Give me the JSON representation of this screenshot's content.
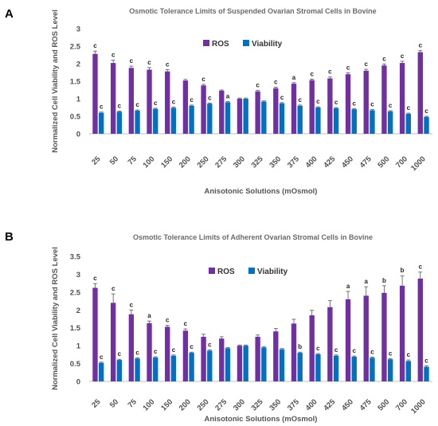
{
  "colors": {
    "ros": "#7030a0",
    "viability": "#0070c0",
    "axis": "#bfbfbf",
    "error": "#555555"
  },
  "chart_data": [
    {
      "panel": "A",
      "type": "bar",
      "title": "Osmotic Tolerance Limits of Suspended Ovarian Stromal Cells in Bovine",
      "xlabel": "Anisotonic Solutions (mOsmol)",
      "ylabel": "Normalized Cell Viability and ROS Level",
      "ylim": [
        0,
        3
      ],
      "yticks": [
        "0",
        "0.5",
        "1",
        "1.5",
        "2",
        "2.5",
        "3"
      ],
      "legend": "top-center",
      "categories": [
        "25",
        "50",
        "75",
        "100",
        "150",
        "200",
        "250",
        "275",
        "300",
        "325",
        "350",
        "375",
        "400",
        "425",
        "450",
        "475",
        "500",
        "700",
        "1000"
      ],
      "series": [
        {
          "name": "ROS",
          "values": [
            2.28,
            2.02,
            1.88,
            1.83,
            1.78,
            1.52,
            1.38,
            1.23,
            1.0,
            1.21,
            1.3,
            1.43,
            1.53,
            1.58,
            1.7,
            1.8,
            1.95,
            2.02,
            2.33
          ],
          "errors": [
            0.08,
            0.08,
            0.05,
            0.06,
            0.05,
            0.03,
            0.03,
            0.02,
            0.02,
            0.03,
            0.03,
            0.03,
            0.03,
            0.04,
            0.04,
            0.04,
            0.04,
            0.05,
            0.05
          ],
          "labels": [
            "c",
            "c",
            "c",
            "c",
            "c",
            "",
            "c",
            "",
            "",
            "c",
            "c",
            "a",
            "c",
            "c",
            "c",
            "c",
            "c",
            "c",
            "c"
          ]
        },
        {
          "name": "Viability",
          "values": [
            0.6,
            0.63,
            0.66,
            0.71,
            0.74,
            0.8,
            0.86,
            0.9,
            1.0,
            0.92,
            0.87,
            0.8,
            0.75,
            0.73,
            0.7,
            0.67,
            0.64,
            0.57,
            0.48
          ],
          "errors": [
            0.02,
            0.02,
            0.02,
            0.02,
            0.02,
            0.02,
            0.02,
            0.02,
            0.02,
            0.02,
            0.02,
            0.02,
            0.02,
            0.02,
            0.02,
            0.02,
            0.02,
            0.02,
            0.02
          ],
          "labels": [
            "c",
            "c",
            "c",
            "c",
            "c",
            "c",
            "c",
            "a",
            "",
            "",
            "c",
            "c",
            "c",
            "c",
            "c",
            "c",
            "c",
            "c",
            "c"
          ]
        }
      ]
    },
    {
      "panel": "B",
      "type": "bar",
      "title": "Osmotic Tolerance Limits of Adherent Ovarian Stromal Cells in Bovine",
      "xlabel": "Anisotonic Solutions (mOsmol)",
      "ylabel": "Normalized Cell Viability and ROS Level",
      "ylim": [
        0,
        3.5
      ],
      "yticks": [
        "0",
        "0.5",
        "1",
        "1.5",
        "2",
        "2.5",
        "3",
        "3.5"
      ],
      "legend": "top-center",
      "categories": [
        "25",
        "50",
        "75",
        "100",
        "150",
        "200",
        "250",
        "275",
        "300",
        "325",
        "350",
        "375",
        "400",
        "425",
        "450",
        "475",
        "500",
        "700",
        "1000"
      ],
      "series": [
        {
          "name": "ROS",
          "values": [
            2.62,
            2.2,
            1.88,
            1.63,
            1.53,
            1.42,
            1.25,
            1.2,
            1.0,
            1.25,
            1.4,
            1.62,
            1.85,
            2.08,
            2.3,
            2.4,
            2.48,
            2.68,
            2.88
          ],
          "errors": [
            0.12,
            0.25,
            0.12,
            0.06,
            0.04,
            0.05,
            0.07,
            0.05,
            0.02,
            0.05,
            0.08,
            0.12,
            0.14,
            0.18,
            0.22,
            0.25,
            0.2,
            0.28,
            0.18
          ],
          "labels": [
            "c",
            "c",
            "c",
            "a",
            "c",
            "c",
            "",
            "",
            "",
            "",
            "",
            "",
            "",
            "",
            "a",
            "a",
            "b",
            "b",
            "c"
          ]
        },
        {
          "name": "Viability",
          "values": [
            0.52,
            0.6,
            0.64,
            0.67,
            0.72,
            0.8,
            0.86,
            0.93,
            1.0,
            0.95,
            0.9,
            0.8,
            0.76,
            0.72,
            0.69,
            0.66,
            0.62,
            0.57,
            0.41
          ],
          "errors": [
            0.02,
            0.02,
            0.02,
            0.02,
            0.02,
            0.02,
            0.02,
            0.02,
            0.02,
            0.02,
            0.02,
            0.02,
            0.02,
            0.02,
            0.02,
            0.02,
            0.02,
            0.03,
            0.03
          ],
          "labels": [
            "c",
            "c",
            "c",
            "c",
            "c",
            "c",
            "c",
            "",
            "",
            "",
            "",
            "b",
            "c",
            "c",
            "c",
            "c",
            "c",
            "c",
            "c"
          ]
        }
      ]
    }
  ]
}
